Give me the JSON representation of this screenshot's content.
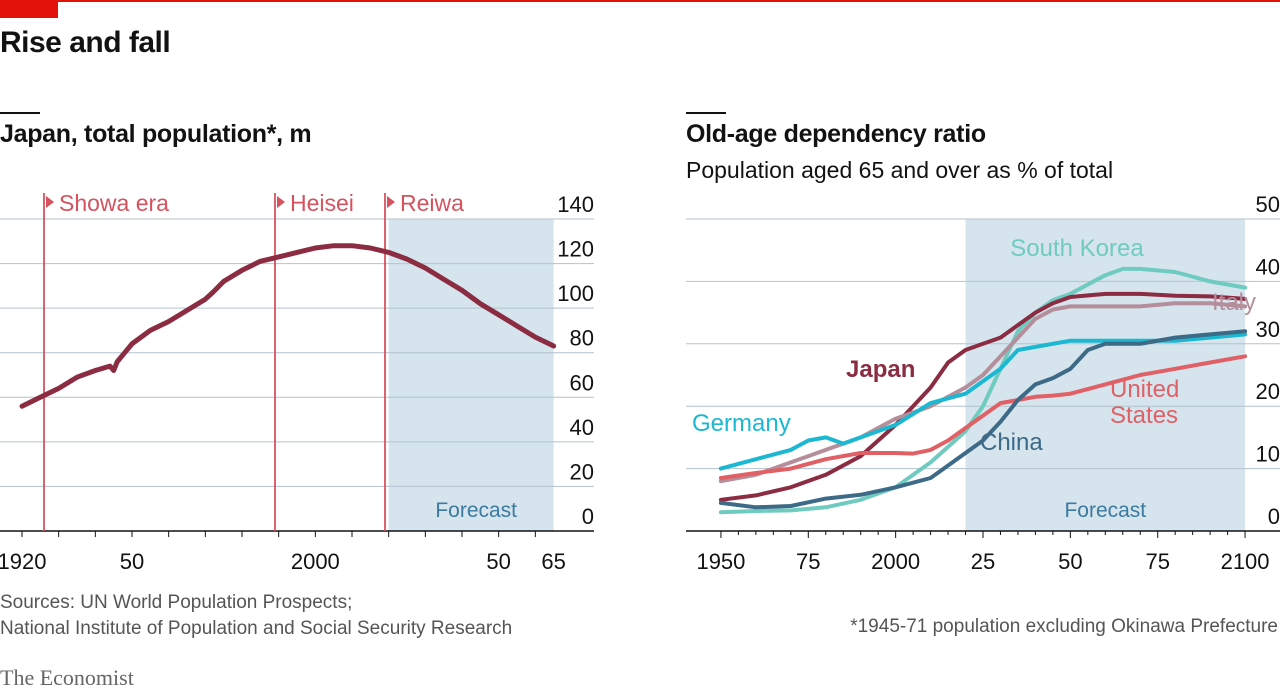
{
  "header": {
    "title": "Rise and fall"
  },
  "colors": {
    "accent": "#e3120b",
    "forecast_band": "#d5e4ed",
    "era_line": "#d6525f"
  },
  "chart_data": [
    {
      "type": "line",
      "title": "Japan, total population*, m",
      "xlim": [
        1914,
        2076
      ],
      "ylim": [
        0,
        140
      ],
      "xticks": [
        1920,
        1950,
        2000,
        2050,
        2065
      ],
      "xtick_labels": [
        "1920",
        "50",
        "2000",
        "50",
        "65"
      ],
      "yticks": [
        0,
        20,
        40,
        60,
        80,
        100,
        120,
        140
      ],
      "ytick_labels": [
        "0",
        "20",
        "40",
        "60",
        "80",
        "100",
        "120",
        "140"
      ],
      "grid": true,
      "forecast_band": {
        "from": 2020,
        "to": 2065,
        "label": "Forecast"
      },
      "eras": [
        {
          "label": "Showa era",
          "year": 1926
        },
        {
          "label": "Heisei",
          "year": 1989
        },
        {
          "label": "Reiwa",
          "year": 2019
        }
      ],
      "series": [
        {
          "color": "#8b2c42",
          "x": [
            1920,
            1925,
            1930,
            1935,
            1940,
            1944,
            1945,
            1946,
            1948,
            1950,
            1955,
            1960,
            1965,
            1970,
            1972,
            1975,
            1980,
            1985,
            1990,
            1995,
            2000,
            2005,
            2008,
            2010,
            2015,
            2020,
            2025,
            2030,
            2035,
            2040,
            2045,
            2050,
            2055,
            2060,
            2065
          ],
          "values": [
            56,
            60,
            64,
            69,
            72,
            74,
            72,
            76,
            80,
            84,
            90,
            94,
            99,
            104,
            107,
            112,
            117,
            121,
            123,
            125,
            127,
            128,
            128,
            128,
            127,
            125,
            122,
            118,
            113,
            108,
            102,
            97,
            92,
            87,
            83
          ]
        }
      ]
    },
    {
      "type": "line",
      "title": "Old-age dependency ratio",
      "subtitle": "Population aged 65 and over as % of total",
      "xlim": [
        1940,
        2110
      ],
      "ylim": [
        0,
        50
      ],
      "xticks": [
        1950,
        1975,
        2000,
        2025,
        2050,
        2075,
        2100
      ],
      "xtick_labels": [
        "1950",
        "75",
        "2000",
        "25",
        "50",
        "75",
        "2100"
      ],
      "yticks": [
        0,
        10,
        20,
        30,
        40,
        50
      ],
      "ytick_labels": [
        "0",
        "10",
        "20",
        "30",
        "40",
        "50"
      ],
      "grid": true,
      "forecast_band": {
        "from": 2020,
        "to": 2100,
        "label": "Forecast"
      },
      "series": [
        {
          "name": "South Korea",
          "color": "#6fcbbf",
          "x": [
            1950,
            1960,
            1970,
            1980,
            1990,
            2000,
            2010,
            2020,
            2025,
            2030,
            2035,
            2040,
            2045,
            2050,
            2055,
            2060,
            2065,
            2070,
            2080,
            2090,
            2100
          ],
          "values": [
            3,
            3.2,
            3.3,
            3.8,
            5,
            7,
            11,
            16,
            20,
            26,
            32,
            35,
            37,
            38,
            39.5,
            41,
            42,
            42,
            41.5,
            40,
            39
          ]
        },
        {
          "name": "Japan",
          "color": "#8b2c42",
          "x": [
            1950,
            1960,
            1970,
            1980,
            1990,
            2000,
            2005,
            2010,
            2015,
            2020,
            2025,
            2030,
            2035,
            2040,
            2045,
            2050,
            2060,
            2070,
            2080,
            2090,
            2100
          ],
          "values": [
            5,
            5.7,
            7,
            9,
            12,
            17,
            20,
            23,
            27,
            29,
            30,
            31,
            33,
            35,
            36.5,
            37.5,
            38,
            38,
            37.7,
            37.6,
            37.2
          ]
        },
        {
          "name": "Italy",
          "color": "#b48e9b",
          "x": [
            1950,
            1960,
            1970,
            1980,
            1990,
            2000,
            2010,
            2020,
            2025,
            2030,
            2035,
            2040,
            2045,
            2050,
            2060,
            2070,
            2080,
            2090,
            2100
          ],
          "values": [
            8,
            9,
            11,
            13,
            15,
            18,
            20,
            23,
            25,
            28,
            31,
            34,
            35.5,
            36,
            36,
            36,
            36.5,
            36.5,
            36
          ]
        },
        {
          "name": "Germany",
          "color": "#1cb8d2",
          "x": [
            1950,
            1960,
            1970,
            1975,
            1980,
            1985,
            1990,
            2000,
            2010,
            2020,
            2025,
            2030,
            2035,
            2040,
            2050,
            2060,
            2070,
            2080,
            2090,
            2100
          ],
          "values": [
            10,
            11.5,
            13,
            14.5,
            15,
            14,
            15,
            17,
            20.5,
            22,
            24,
            26,
            29,
            29.5,
            30.5,
            30.5,
            30.5,
            30.5,
            31,
            31.5
          ]
        },
        {
          "name": "United States",
          "color": "#e06065",
          "x": [
            1950,
            1960,
            1970,
            1980,
            1990,
            2000,
            2005,
            2010,
            2015,
            2020,
            2025,
            2030,
            2035,
            2040,
            2045,
            2050,
            2060,
            2070,
            2080,
            2090,
            2100
          ],
          "values": [
            8.5,
            9.3,
            10,
            11.5,
            12.5,
            12.5,
            12.4,
            13,
            14.5,
            16.5,
            18.5,
            20.5,
            21,
            21.5,
            21.7,
            22,
            23.5,
            25,
            26,
            27,
            28
          ]
        },
        {
          "name": "China",
          "color": "#3d6a87",
          "x": [
            1950,
            1960,
            1970,
            1980,
            1990,
            2000,
            2010,
            2015,
            2020,
            2025,
            2030,
            2035,
            2040,
            2045,
            2050,
            2055,
            2060,
            2070,
            2080,
            2090,
            2100
          ],
          "values": [
            4.5,
            3.8,
            4,
            5.2,
            5.8,
            7,
            8.5,
            10.5,
            12.5,
            14.5,
            17.5,
            21,
            23.5,
            24.5,
            26,
            29,
            30,
            30,
            31,
            31.5,
            32
          ]
        }
      ]
    }
  ],
  "footer": {
    "sources_line1": "Sources: UN World Population Prospects;",
    "sources_line2": "National Institute of Population and Social Security Research",
    "footnote": "*1945-71 population excluding Okinawa Prefecture",
    "brand": "The Economist"
  }
}
